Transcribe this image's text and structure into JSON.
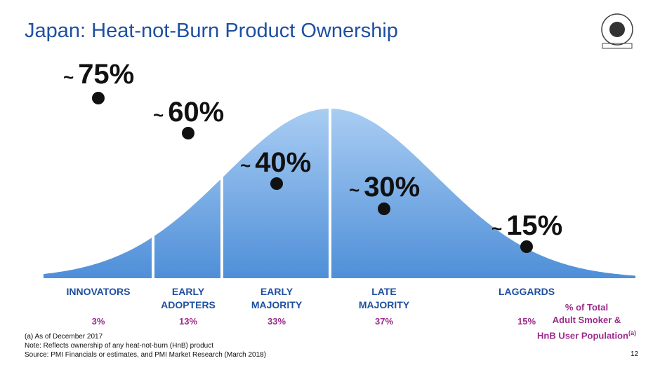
{
  "header": {
    "title": "Japan: Heat-not-Burn Product Ownership"
  },
  "approx": "~",
  "segments": [
    {
      "label": [
        "INNOVATORS"
      ],
      "share": "3%",
      "ownership": "75%"
    },
    {
      "label": [
        "EARLY",
        "ADOPTERS"
      ],
      "share": "13%",
      "ownership": "60%"
    },
    {
      "label": [
        "EARLY",
        "MAJORITY"
      ],
      "share": "33%",
      "ownership": "40%"
    },
    {
      "label": [
        "LATE",
        "MAJORITY"
      ],
      "share": "37%",
      "ownership": "30%"
    },
    {
      "label": [
        "LAGGARDS"
      ],
      "share": "15%",
      "ownership": "15%"
    }
  ],
  "share_legend": {
    "lines": [
      "% of Total",
      "Adult Smoker &",
      "HnB User Population"
    ],
    "note_mark": "(a)"
  },
  "footnotes": [
    "(a)  As of December 2017",
    "Note: Reflects ownership of any heat-not-burn (HnB) product",
    "Source:  PMI Financials or estimates, and PMI Market Research (March 2018)"
  ],
  "page_number": "12"
}
